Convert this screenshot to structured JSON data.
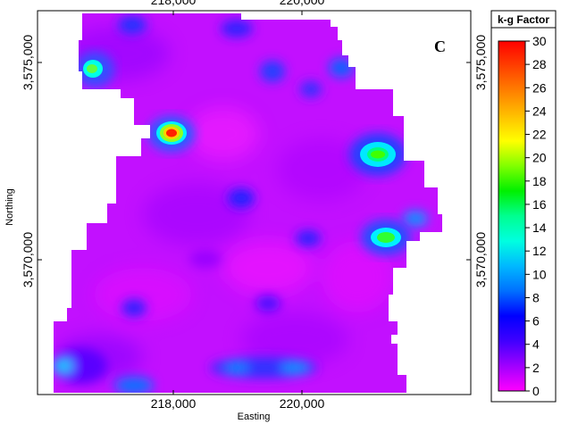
{
  "map": {
    "panel_label": "C",
    "x_axis_title": "Easting",
    "y_axis_title": "Northing",
    "x_ticks": [
      "218,000",
      "220,000"
    ],
    "y_ticks": [
      "3,575,000",
      "3,570,000"
    ]
  },
  "legend": {
    "title": "k-g Factor",
    "min": 0,
    "max": 30,
    "ticks": [
      "30",
      "28",
      "26",
      "24",
      "22",
      "20",
      "18",
      "16",
      "14",
      "12",
      "10",
      "8",
      "6",
      "4",
      "2",
      "0"
    ],
    "colors": [
      "#ff00ff",
      "#a000ff",
      "#4000ff",
      "#0000ff",
      "#0070ff",
      "#00b8ff",
      "#00ffe0",
      "#00ff90",
      "#00f000",
      "#80ff00",
      "#ffff00",
      "#ffc000",
      "#ff8000",
      "#ff4000",
      "#ff0000"
    ]
  }
}
